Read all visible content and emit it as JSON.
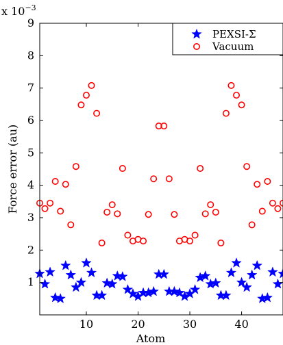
{
  "chart_data": {
    "type": "scatter",
    "title": "",
    "xlabel": "Atom",
    "ylabel": "Force error (au)",
    "y_scale_label": "x 10",
    "y_scale_exponent": "−3",
    "xlim": [
      1,
      48
    ],
    "ylim": [
      0.0,
      9.0
    ],
    "xticks": [
      10,
      20,
      30,
      40
    ],
    "yticks": [
      1,
      2,
      3,
      4,
      5,
      6,
      7,
      8,
      9
    ],
    "grid": false,
    "legend_position": "top-right",
    "series": [
      {
        "name": "PEXSI-Σ",
        "marker": "star",
        "color": "#0000ff",
        "x": [
          1,
          2,
          3,
          4,
          5,
          6,
          7,
          8,
          9,
          10,
          11,
          12,
          13,
          14,
          15,
          16,
          17,
          18,
          19,
          20,
          21,
          22,
          23,
          24,
          25,
          26,
          27,
          28,
          29,
          30,
          31,
          32,
          33,
          34,
          35,
          36,
          37,
          38,
          39,
          40,
          41,
          42,
          43,
          44,
          45,
          46,
          47,
          48
        ],
        "y": [
          1.27,
          0.95,
          1.32,
          0.53,
          0.5,
          1.52,
          1.23,
          0.85,
          1.0,
          1.6,
          1.3,
          0.6,
          0.6,
          0.98,
          0.95,
          1.2,
          1.18,
          0.78,
          0.65,
          0.57,
          0.68,
          0.68,
          0.72,
          1.25,
          1.25,
          0.72,
          0.72,
          0.68,
          0.57,
          0.65,
          0.78,
          1.15,
          1.2,
          0.95,
          0.98,
          0.6,
          0.6,
          1.3,
          1.6,
          1.0,
          0.85,
          1.23,
          1.52,
          0.5,
          0.53,
          1.32,
          0.95,
          1.27
        ]
      },
      {
        "name": "Vacuum",
        "marker": "circle",
        "color": "#ff0000",
        "x": [
          1,
          2,
          3,
          4,
          5,
          6,
          7,
          8,
          9,
          10,
          11,
          12,
          13,
          14,
          15,
          16,
          17,
          18,
          19,
          20,
          21,
          22,
          23,
          24,
          25,
          26,
          27,
          28,
          29,
          30,
          31,
          32,
          33,
          34,
          35,
          36,
          37,
          38,
          39,
          40,
          41,
          42,
          43,
          44,
          45,
          46,
          47,
          48
        ],
        "y": [
          3.45,
          3.28,
          3.45,
          4.12,
          3.2,
          4.03,
          2.78,
          4.58,
          6.48,
          6.78,
          7.08,
          6.22,
          2.22,
          3.17,
          3.4,
          3.12,
          4.52,
          2.46,
          2.28,
          2.33,
          2.28,
          3.1,
          4.2,
          5.83,
          5.83,
          4.2,
          3.1,
          2.28,
          2.33,
          2.28,
          2.46,
          4.52,
          3.12,
          3.4,
          3.17,
          2.22,
          6.22,
          7.08,
          6.78,
          6.48,
          4.58,
          2.78,
          4.03,
          3.2,
          4.12,
          3.45,
          3.28,
          3.45
        ]
      }
    ]
  }
}
